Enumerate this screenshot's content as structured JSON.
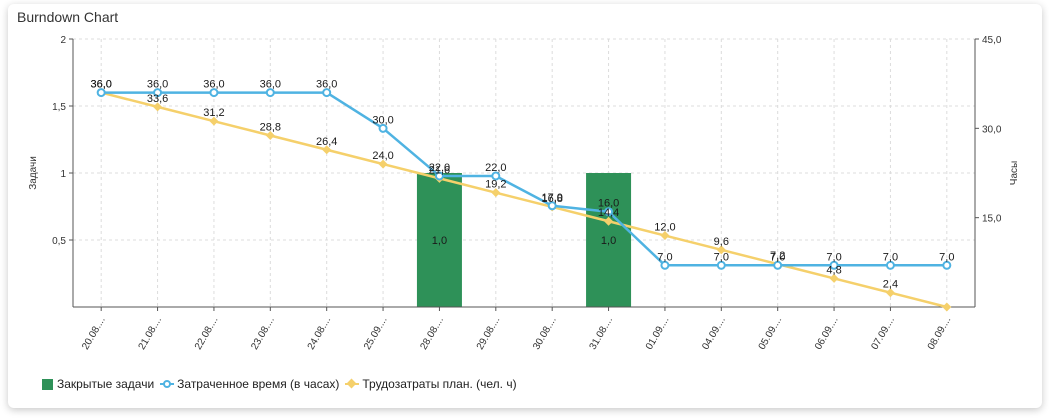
{
  "chart_title": "Burndown Chart",
  "colors": {
    "bar": "#2e9158",
    "spent": "#4fb3e2",
    "planned": "#f5d06b",
    "grid": "#dcdcdc",
    "axis": "#555555"
  },
  "chart_data": {
    "type": "combo",
    "title": "Burndown Chart",
    "categories": [
      "20.08....",
      "21.08....",
      "22.08....",
      "23.08....",
      "24.08....",
      "25.09....",
      "28.08....",
      "29.08....",
      "30.08....",
      "31.08....",
      "01.09....",
      "04.09....",
      "05.09....",
      "06.09....",
      "07.09....",
      "08.09...."
    ],
    "y_left": {
      "label": "Задачи",
      "range": [
        0,
        2
      ],
      "ticks": [
        "0,5",
        "1",
        "1,5",
        "2"
      ],
      "tick_values": [
        0.5,
        1,
        1.5,
        2
      ]
    },
    "y_right": {
      "label": "Часы",
      "range": [
        0,
        45
      ],
      "ticks": [
        "15,0",
        "30,0",
        "45,0"
      ],
      "tick_values": [
        15,
        30,
        45
      ]
    },
    "series": [
      {
        "name": "Закрытые задачи",
        "type": "bar",
        "axis": "left",
        "values": [
          null,
          null,
          null,
          null,
          null,
          null,
          1,
          null,
          null,
          1,
          null,
          null,
          null,
          null,
          null,
          null
        ],
        "labels": [
          null,
          null,
          null,
          null,
          null,
          null,
          "1,0",
          null,
          null,
          "1,0",
          null,
          null,
          null,
          null,
          null,
          null
        ]
      },
      {
        "name": "Затраченное время (в часах)",
        "type": "line",
        "axis": "right",
        "values": [
          36,
          36,
          36,
          36,
          36,
          30,
          22,
          22,
          17,
          16,
          7,
          7,
          7,
          7,
          7,
          7
        ],
        "labels": [
          "36,0",
          "36,0",
          "36,0",
          "36,0",
          "36,0",
          "30,0",
          "22,0",
          "22,0",
          "17,0",
          "16,0",
          "7,0",
          "7,0",
          "7,0",
          "7,0",
          "7,0",
          "7,0"
        ]
      },
      {
        "name": "Трудозатраты план. (чел. ч)",
        "type": "line",
        "axis": "right",
        "values": [
          36,
          33.6,
          31.2,
          28.8,
          26.4,
          24,
          21.6,
          19.2,
          16.8,
          14.4,
          12,
          9.6,
          7.2,
          4.8,
          2.4,
          0
        ],
        "labels": [
          "36,0",
          "33,6",
          "31,2",
          "28,8",
          "26,4",
          "24,0",
          "21,6",
          "19,2",
          "16,8",
          "14,4",
          "12,0",
          "9,6",
          "7,2",
          "4,8",
          "2,4",
          null
        ]
      }
    ],
    "legend_position": "bottom-left"
  },
  "legend": {
    "items": [
      {
        "label": "Закрытые задачи"
      },
      {
        "label": "Затраченное время (в часах)"
      },
      {
        "label": "Трудозатраты план. (чел. ч)"
      }
    ]
  }
}
